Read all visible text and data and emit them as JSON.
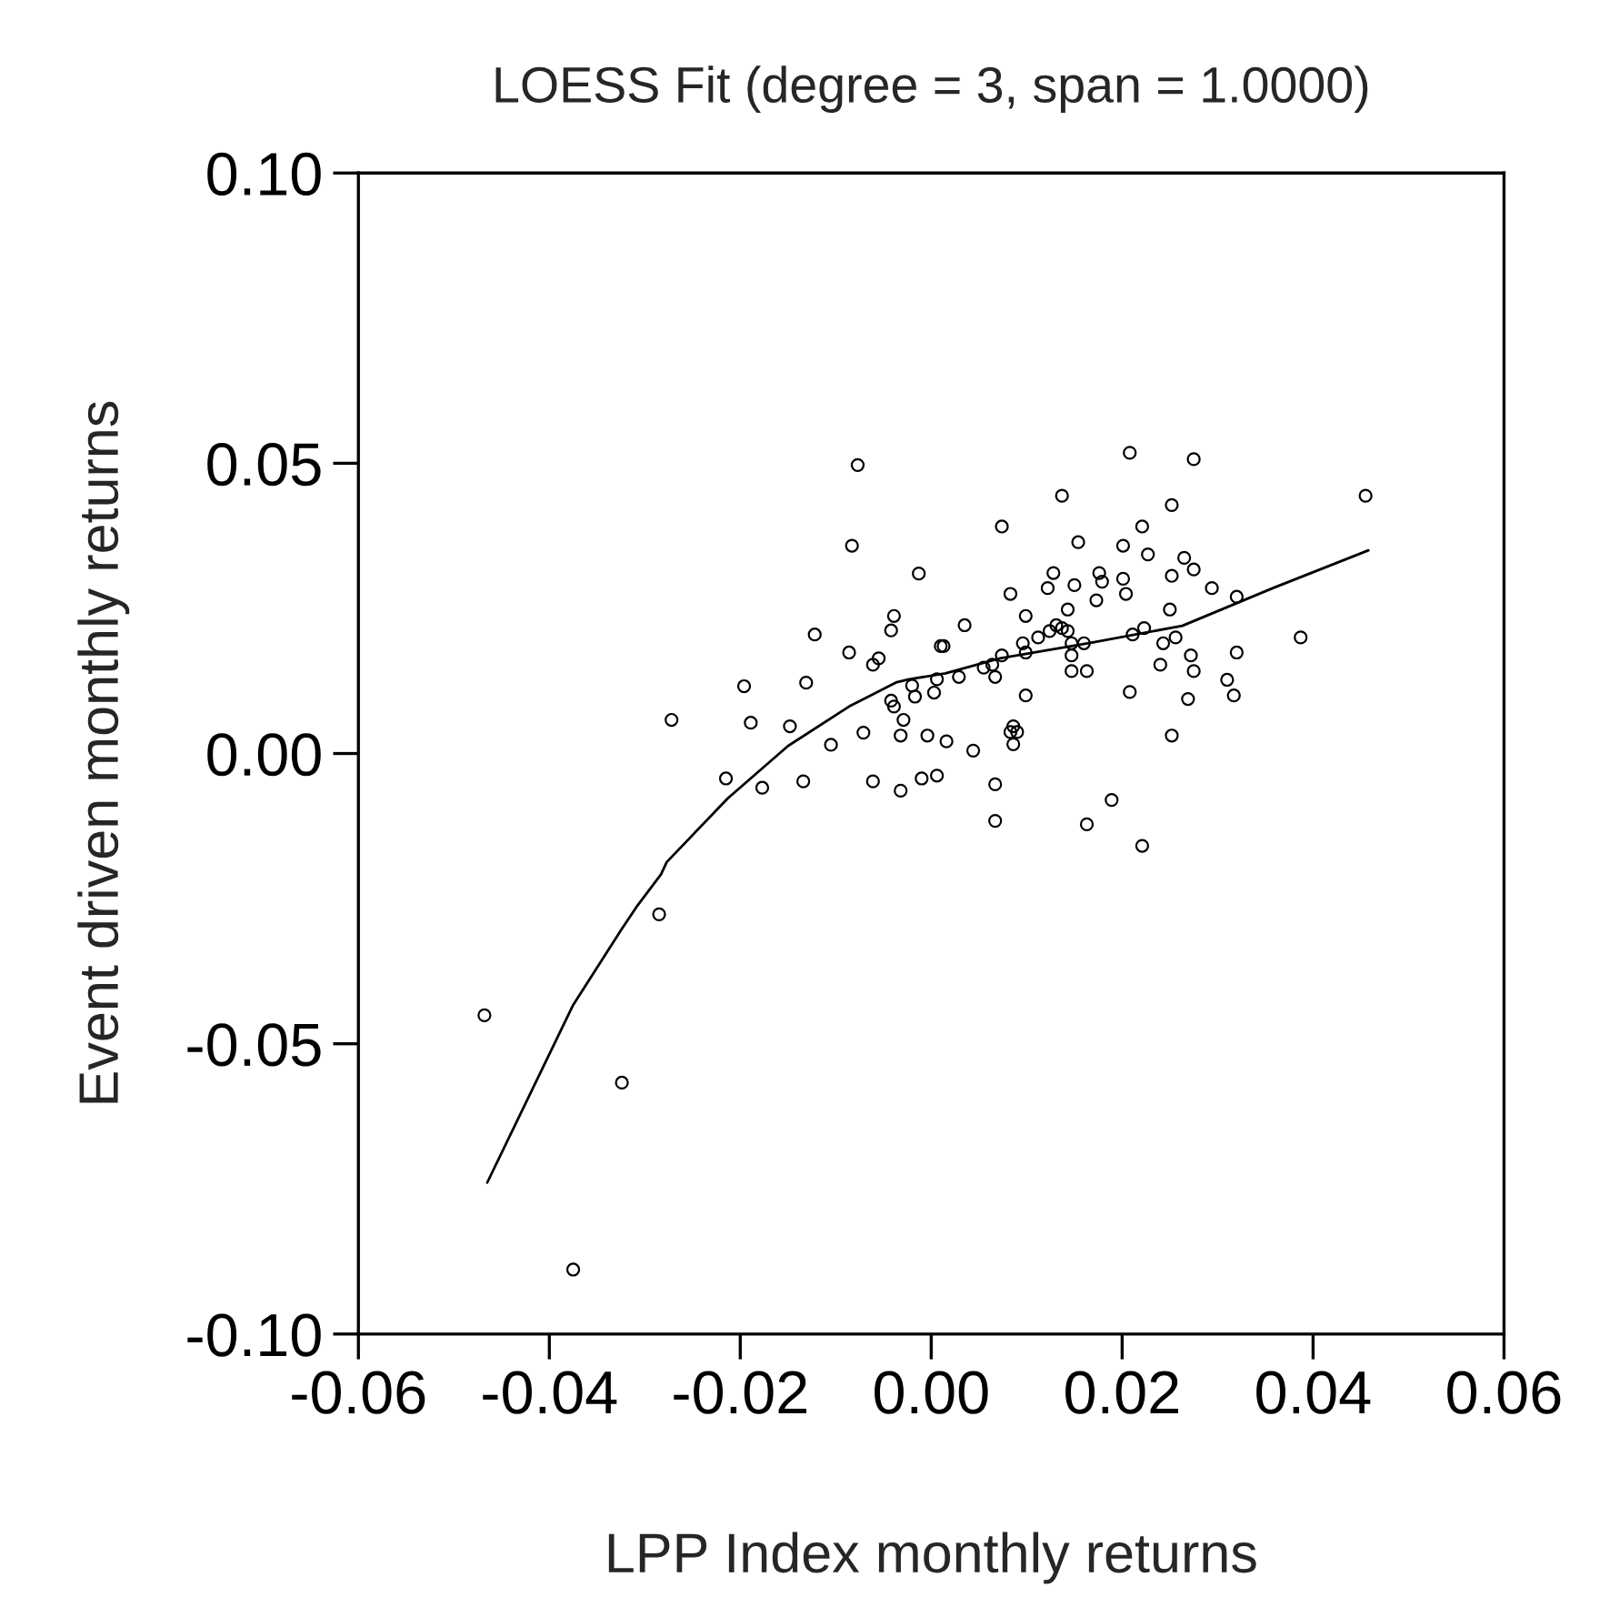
{
  "chart_data": {
    "type": "scatter",
    "title": "LOESS Fit (degree = 3, span = 1.0000)",
    "xlabel": "LPP Index monthly returns",
    "ylabel": "Event driven monthly returns",
    "xlim": [
      -0.06,
      0.06
    ],
    "xticks": [
      {
        "value": -0.06,
        "label": "-0.06"
      },
      {
        "value": -0.04,
        "label": "-0.04"
      },
      {
        "value": -0.02,
        "label": "-0.02"
      },
      {
        "value": 0,
        "label": "0.00"
      },
      {
        "value": 0.02,
        "label": "0.02"
      },
      {
        "value": 0.04,
        "label": "0.04"
      },
      {
        "value": 0.06,
        "label": "0.06"
      }
    ],
    "ylim": [
      -0.1,
      0.1
    ],
    "yticks": [
      {
        "value": -0.1,
        "label": "-0.10"
      },
      {
        "value": -0.05,
        "label": "-0.05"
      },
      {
        "value": 0,
        "label": "0.00"
      },
      {
        "value": 0.05,
        "label": "0.05"
      },
      {
        "value": 0.1,
        "label": "0.10"
      }
    ],
    "grid": false,
    "legend": false,
    "series": [
      {
        "color": "#000000",
        "marker": "circle",
        "x": [
          -0.0077,
          -0.0083,
          -0.0013,
          -0.0039,
          -0.0042,
          -0.0122,
          -0.0086,
          -0.0061,
          -0.0055,
          0.001,
          -0.0196,
          -0.0131,
          -0.002,
          -0.0017,
          0.0003,
          0.0006,
          -0.0042,
          -0.0039,
          -0.0029,
          -0.0272,
          -0.0189,
          -0.0148,
          -0.0071,
          -0.0032,
          -0.0004,
          -0.0105,
          -0.0215,
          -0.0177,
          -0.0134,
          -0.0061,
          -0.0032,
          -0.001,
          0.0006,
          0.0208,
          0.0275,
          0.0455,
          0.0137,
          0.0252,
          0.0074,
          0.0221,
          0.0154,
          0.0201,
          0.0227,
          0.0265,
          0.0275,
          0.0128,
          0.0176,
          0.0252,
          0.0179,
          0.0201,
          0.015,
          0.0122,
          0.0294,
          0.0083,
          0.0204,
          0.032,
          0.0173,
          0.0143,
          0.025,
          0.0099,
          0.0035,
          0.0131,
          0.0137,
          0.0143,
          0.0124,
          0.0112,
          0.0223,
          0.0211,
          0.0256,
          0.0387,
          0.0013,
          0.0096,
          0.0147,
          0.016,
          0.0243,
          0.032,
          0.0099,
          0.0147,
          0.0272,
          0.0074,
          0.0064,
          0.0055,
          0.0147,
          0.0163,
          0.0275,
          0.024,
          0.0029,
          0.0067,
          0.0099,
          0.0208,
          0.0269,
          0.0317,
          0.031,
          0.0016,
          0.0044,
          0.0086,
          0.0083,
          0.009,
          0.0086,
          0.0252,
          0.0067,
          0.0067,
          0.0189,
          0.0163,
          0.0221,
          -0.0285,
          -0.0468,
          -0.0324,
          -0.0375
        ],
        "values": [
          0.0497,
          0.0358,
          0.031,
          0.0237,
          0.0212,
          0.0205,
          0.0174,
          0.0153,
          0.0164,
          0.0185,
          0.0116,
          0.0122,
          0.0117,
          0.0098,
          0.0105,
          0.0128,
          0.0091,
          0.0081,
          0.0058,
          0.0058,
          0.0053,
          0.0047,
          0.0036,
          0.0031,
          0.0031,
          0.0015,
          -0.0043,
          -0.0059,
          -0.0048,
          -0.0048,
          -0.0064,
          -0.0043,
          -0.0038,
          0.0518,
          0.0507,
          0.0444,
          0.0444,
          0.0428,
          0.0391,
          0.0391,
          0.0364,
          0.0358,
          0.0343,
          0.0337,
          0.0317,
          0.0311,
          0.0311,
          0.0306,
          0.0296,
          0.0301,
          0.029,
          0.0285,
          0.0285,
          0.0275,
          0.0275,
          0.027,
          0.0264,
          0.0248,
          0.0248,
          0.0237,
          0.0221,
          0.0221,
          0.0216,
          0.0211,
          0.0211,
          0.02,
          0.0216,
          0.0205,
          0.02,
          0.02,
          0.0185,
          0.019,
          0.019,
          0.019,
          0.019,
          0.0174,
          0.0174,
          0.0169,
          0.0169,
          0.0169,
          0.0153,
          0.0148,
          0.0142,
          0.0142,
          0.0142,
          0.0153,
          0.0132,
          0.0132,
          0.01,
          0.0106,
          0.0094,
          0.01,
          0.0127,
          0.0021,
          0.0005,
          0.0047,
          0.0037,
          0.0037,
          0.0016,
          0.0031,
          -0.0053,
          -0.0116,
          -0.008,
          -0.0122,
          -0.0159,
          -0.0277,
          -0.0451,
          -0.0567,
          -0.0889
        ]
      },
      {
        "type": "line",
        "color": "#000000",
        "marker": "none",
        "line_style": "solid",
        "x": [
          -0.0465,
          -0.0375,
          -0.0324,
          -0.0309,
          -0.0283,
          -0.0277,
          -0.0213,
          -0.015,
          -0.0086,
          -0.0036,
          -0.0023,
          0.0015,
          0.0072,
          0.0168,
          0.0263,
          0.0358,
          0.0458
        ],
        "values": [
          -0.0739,
          -0.0433,
          -0.0302,
          -0.0265,
          -0.0208,
          -0.0187,
          -0.0077,
          0.0013,
          0.0081,
          0.0123,
          0.0128,
          0.0138,
          0.0164,
          0.0191,
          0.022,
          0.0285,
          0.035
        ]
      }
    ]
  }
}
